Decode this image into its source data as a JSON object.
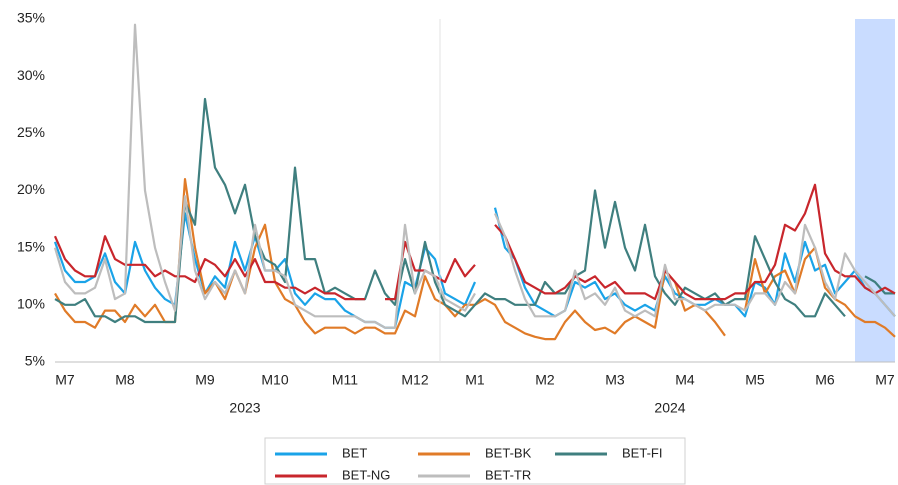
{
  "chart_data": {
    "type": "line",
    "categories": [
      null,
      "M7",
      null,
      null,
      null,
      null,
      null,
      "M8",
      null,
      null,
      null,
      null,
      null,
      null,
      null,
      "M9",
      null,
      null,
      null,
      null,
      null,
      null,
      "M10",
      null,
      null,
      null,
      null,
      null,
      null,
      "M11",
      null,
      null,
      null,
      null,
      null,
      null,
      "M12",
      null,
      null,
      null,
      null,
      null,
      "M1",
      null,
      null,
      null,
      null,
      null,
      null,
      "M2",
      null,
      null,
      null,
      null,
      null,
      null,
      "M3",
      null,
      null,
      null,
      null,
      null,
      null,
      "M4",
      null,
      null,
      null,
      null,
      null,
      null,
      "M5",
      null,
      null,
      null,
      null,
      null,
      null,
      "M6",
      null,
      null,
      null,
      null,
      null,
      "M7",
      null
    ],
    "x_groups": [
      {
        "label": "2023",
        "start": 0,
        "end": 38
      },
      {
        "label": "2024",
        "start": 39,
        "end": 84
      }
    ],
    "ylim": [
      5,
      35
    ],
    "yticks": [
      {
        "value": 5,
        "label": "5%"
      },
      {
        "value": 10,
        "label": "10%"
      },
      {
        "value": 15,
        "label": "15%"
      },
      {
        "value": 20,
        "label": "20%"
      },
      {
        "value": 25,
        "label": "25%"
      },
      {
        "value": 30,
        "label": "30%"
      },
      {
        "value": 35,
        "label": "35%"
      }
    ],
    "series": [
      {
        "name": "BET",
        "color": "#1aa3e8",
        "values": [
          15.5,
          13,
          12,
          12,
          12.5,
          14.5,
          12,
          11,
          15.5,
          13,
          11.5,
          10.5,
          10,
          18,
          14,
          11,
          12.5,
          11.5,
          15.5,
          13,
          16,
          13,
          13,
          14,
          11,
          10,
          11,
          10.5,
          10.5,
          9.5,
          9,
          8.5,
          8.5,
          8,
          8,
          12,
          11.5,
          15,
          14,
          11,
          10.5,
          10,
          12,
          null,
          18.5,
          15,
          14,
          11.5,
          10,
          9.5,
          9,
          9.5,
          12,
          11.5,
          12,
          10.5,
          11,
          10,
          9.5,
          10,
          9.5,
          12.5,
          11,
          10.5,
          10,
          10,
          10.5,
          10,
          10,
          9,
          12,
          11.5,
          10,
          14.5,
          12,
          15.5,
          13,
          13.5,
          11,
          12,
          13,
          11.5,
          11,
          10,
          9
        ]
      },
      {
        "name": "BET-BK",
        "color": "#e07b28",
        "values": [
          11,
          9.5,
          8.5,
          8.5,
          8,
          9.5,
          9.5,
          8.5,
          10,
          9,
          10,
          8.5,
          8.5,
          21,
          15,
          11,
          12,
          10.5,
          13,
          11,
          15,
          17,
          12,
          10.5,
          10,
          8.5,
          7.5,
          8,
          8,
          8,
          7.5,
          8,
          8,
          7.5,
          7.5,
          9.5,
          9,
          12.5,
          10.5,
          10,
          9,
          10,
          10,
          10.5,
          10,
          8.5,
          8,
          7.5,
          7.2,
          7,
          7,
          8.5,
          9.5,
          8.5,
          7.8,
          8,
          7.5,
          8.5,
          9,
          8.5,
          8,
          13,
          12,
          9.5,
          10,
          9.5,
          8.5,
          7.3,
          null,
          9.5,
          14,
          11,
          12.5,
          13,
          11,
          14,
          15,
          11.5,
          10.5,
          10,
          9,
          8.5,
          8.5,
          8,
          7.2
        ]
      },
      {
        "name": "BET-FI",
        "color": "#3f7f7f",
        "values": [
          10.5,
          10,
          10,
          10.5,
          9,
          9,
          8.5,
          9,
          9,
          8.5,
          8.5,
          8.5,
          8.5,
          19,
          17,
          28,
          22,
          20.5,
          18,
          20.5,
          16,
          14,
          13.5,
          12,
          22,
          14,
          14,
          11,
          11.5,
          11,
          10.5,
          10.5,
          13,
          11,
          10,
          14,
          11,
          15.5,
          12,
          10,
          9.5,
          9,
          10,
          11,
          10.5,
          10.5,
          10,
          10,
          10,
          12,
          11,
          11,
          12.5,
          13,
          20,
          15,
          19,
          15,
          13,
          17,
          12.5,
          11,
          10,
          11.5,
          11,
          10.5,
          11,
          10,
          10.5,
          10.5,
          16,
          14,
          12,
          10.5,
          10,
          9,
          9,
          11,
          10,
          9,
          null,
          12.5,
          12,
          11,
          11
        ]
      },
      {
        "name": "BET-NG",
        "color": "#c8262c",
        "values": [
          16,
          14,
          13,
          12.5,
          12.5,
          16,
          14,
          13.5,
          13.5,
          13.5,
          12.5,
          13,
          12.5,
          12.5,
          12,
          14,
          13.5,
          12.5,
          14,
          12.5,
          14,
          12,
          12,
          11.5,
          11.5,
          11,
          11.5,
          11,
          11,
          10.5,
          10.5,
          10.5,
          null,
          10.5,
          10.5,
          15.5,
          13,
          13,
          12.5,
          12,
          14,
          12.5,
          13.5,
          null,
          17,
          16,
          14,
          12,
          11.5,
          11,
          11,
          11.5,
          12.5,
          12,
          12.5,
          11.5,
          12,
          11,
          11,
          11,
          10.5,
          13,
          12,
          11,
          10.5,
          10.5,
          10.5,
          10.5,
          11,
          11,
          12,
          12,
          13.5,
          17,
          16.5,
          18,
          20.5,
          14.5,
          13,
          12.5,
          12.5,
          11.5,
          11,
          11.5,
          11
        ]
      },
      {
        "name": "BET-TR",
        "color": "#bdbdbd",
        "values": [
          15,
          12,
          11,
          11,
          11.5,
          14,
          10.5,
          11,
          34.5,
          20,
          15,
          12,
          9.5,
          19.5,
          13,
          10.5,
          12,
          11,
          13,
          11,
          17,
          13,
          13,
          12.5,
          10,
          9.5,
          9,
          9,
          9,
          9,
          9,
          8.5,
          8.5,
          8,
          8,
          17,
          11,
          13,
          12.5,
          10.5,
          10,
          9.5,
          11,
          null,
          18,
          16,
          13,
          10.5,
          9,
          9,
          9,
          9.5,
          13,
          10.5,
          11,
          10,
          11.5,
          9.5,
          9,
          9.5,
          9,
          13.5,
          10.5,
          10.5,
          10,
          9.5,
          10,
          10,
          10,
          9.5,
          11,
          11,
          10,
          12,
          11,
          17,
          15,
          12,
          10.5,
          14.5,
          13,
          12,
          11,
          10,
          9
        ]
      }
    ]
  }
}
